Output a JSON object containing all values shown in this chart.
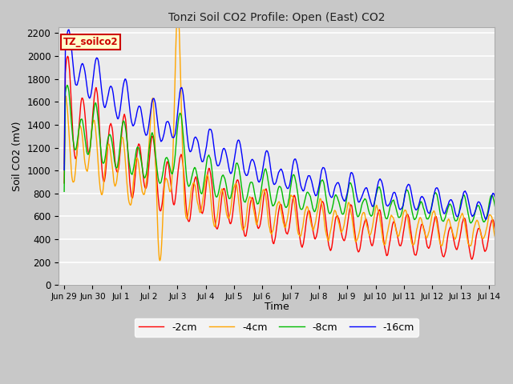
{
  "title": "Tonzi Soil CO2 Profile: Open (East) CO2",
  "ylabel": "Soil CO2 (mV)",
  "xlabel": "Time",
  "ylim": [
    0,
    2250
  ],
  "yticks": [
    0,
    200,
    400,
    600,
    800,
    1000,
    1200,
    1400,
    1600,
    1800,
    2000,
    2200
  ],
  "plot_bg": "#ebebeb",
  "grid_color": "#ffffff",
  "legend_label": "TZ_soilco2",
  "legend_bg": "#ffffcc",
  "legend_border": "#cc0000",
  "line_colors": [
    "#ff0000",
    "#ffa500",
    "#00bb00",
    "#0000ff"
  ],
  "line_labels": [
    "-2cm",
    "-4cm",
    "-8cm",
    "-16cm"
  ],
  "xtick_labels": [
    "Jun 29",
    "Jun 30",
    "Jul 1",
    "Jul 2",
    "Jul 3",
    "Jul 4",
    "Jul 5",
    "Jul 6",
    "Jul 7",
    "Jul 8",
    "Jul 9",
    "Jul 10",
    "Jul 11",
    "Jul 12",
    "Jul 13",
    "Jul 14"
  ],
  "num_days": 16
}
